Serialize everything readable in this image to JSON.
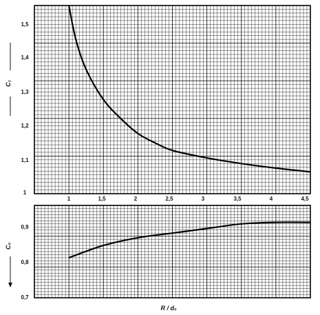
{
  "chart_data": [
    {
      "type": "line",
      "title": "",
      "xlabel": "",
      "ylabel": "C₁",
      "xlim": [
        0.5,
        4.5
      ],
      "ylim": [
        1.0,
        1.5
      ],
      "grid": true,
      "xticks": [
        "1",
        "1,5",
        "2",
        "2,5",
        "3",
        "3,5",
        "4",
        "4,5"
      ],
      "yticks": [
        "1",
        "1,1",
        "1,2",
        "1,3",
        "1,4",
        "1,5"
      ],
      "series": [
        {
          "x": [
            1.0,
            1.1,
            1.25,
            1.5,
            1.75,
            2.0,
            2.25,
            2.5,
            3.0,
            3.5,
            4.0,
            4.5
          ],
          "y": [
            1.5,
            1.41,
            1.33,
            1.25,
            1.2,
            1.16,
            1.135,
            1.115,
            1.095,
            1.08,
            1.068,
            1.058
          ]
        }
      ]
    },
    {
      "type": "line",
      "title": "",
      "xlabel": "R / d₀",
      "ylabel": "C₀",
      "xlim": [
        0.5,
        4.5
      ],
      "ylim": [
        0.7,
        1.0
      ],
      "grid": true,
      "xticks": [],
      "yticks": [
        "0,7",
        "0,8",
        "0,9"
      ],
      "series": [
        {
          "x": [
            1.0,
            1.5,
            2.0,
            2.5,
            3.0,
            3.5,
            4.0,
            4.5
          ],
          "y": [
            0.83,
            0.87,
            0.895,
            0.91,
            0.925,
            0.94,
            0.945,
            0.945
          ]
        }
      ]
    }
  ]
}
